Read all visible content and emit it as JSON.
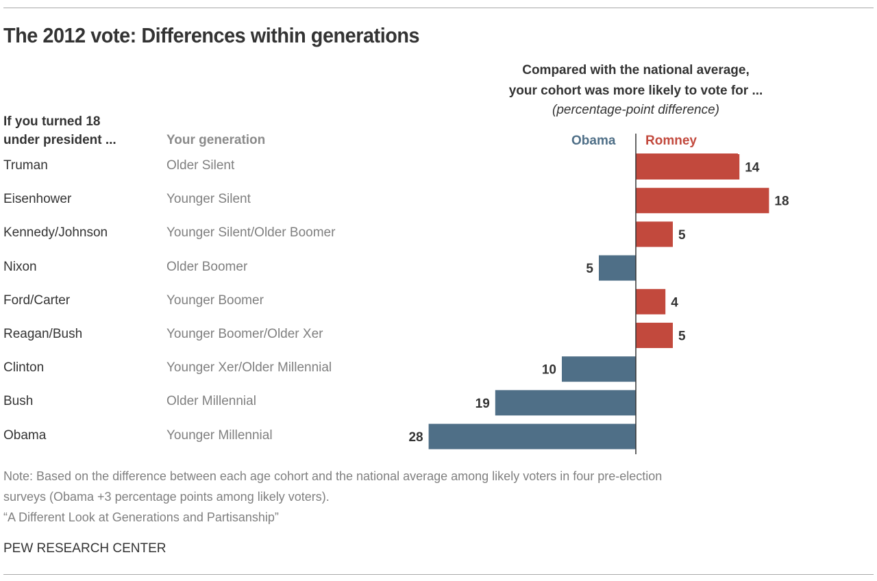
{
  "title": "The 2012 vote: Differences within generations",
  "subheading": {
    "line1": "Compared with the national average,",
    "line2": "your cohort was more likely to vote for ...",
    "line3": "(percentage-point difference)"
  },
  "column_headers": {
    "president_line1": "If you turned 18",
    "president_line2": "under president ...",
    "generation": "Your generation"
  },
  "colors": {
    "obama": "#4f6f87",
    "romney": "#c2493d",
    "axis": "#333333"
  },
  "chart_data": {
    "type": "bar",
    "orientation": "horizontal-diverging",
    "title": "The 2012 vote: Differences within generations",
    "xlabel": "percentage-point difference",
    "legend": [
      "Obama",
      "Romney"
    ],
    "legend_placement": "top",
    "categories": [
      "Truman",
      "Eisenhower",
      "Kennedy/Johnson",
      "Nixon",
      "Ford/Carter",
      "Reagan/Bush",
      "Clinton",
      "Bush",
      "Obama"
    ],
    "generations": [
      "Older Silent",
      "Younger Silent",
      "Younger Silent/Older Boomer",
      "Older Boomer",
      "Younger Boomer",
      "Younger Boomer/Older Xer",
      "Younger Xer/Older Millennial",
      "Older Millennial",
      "Younger Millennial"
    ],
    "rows": [
      {
        "president": "Truman",
        "generation": "Older Silent",
        "party": "Romney",
        "value": 14
      },
      {
        "president": "Eisenhower",
        "generation": "Younger Silent",
        "party": "Romney",
        "value": 18
      },
      {
        "president": "Kennedy/Johnson",
        "generation": "Younger Silent/Older Boomer",
        "party": "Romney",
        "value": 5
      },
      {
        "president": "Nixon",
        "generation": "Older Boomer",
        "party": "Obama",
        "value": 5
      },
      {
        "president": "Ford/Carter",
        "generation": "Younger Boomer",
        "party": "Romney",
        "value": 4
      },
      {
        "president": "Reagan/Bush",
        "generation": "Younger Boomer/Older Xer",
        "party": "Romney",
        "value": 5
      },
      {
        "president": "Clinton",
        "generation": "Younger Xer/Older Millennial",
        "party": "Obama",
        "value": 10
      },
      {
        "president": "Bush",
        "generation": "Older Millennial",
        "party": "Obama",
        "value": 19
      },
      {
        "president": "Obama",
        "generation": "Younger Millennial",
        "party": "Obama",
        "value": 28
      }
    ],
    "xlim": [
      -28,
      18
    ],
    "grid": false
  },
  "notes": {
    "line1": "Note: Based on the difference between each age cohort and the national average among likely voters in four pre-election",
    "line2": "surveys (Obama +3 percentage points among likely voters).",
    "line3": "“A Different Look at Generations and Partisanship”"
  },
  "source": "PEW RESEARCH CENTER"
}
